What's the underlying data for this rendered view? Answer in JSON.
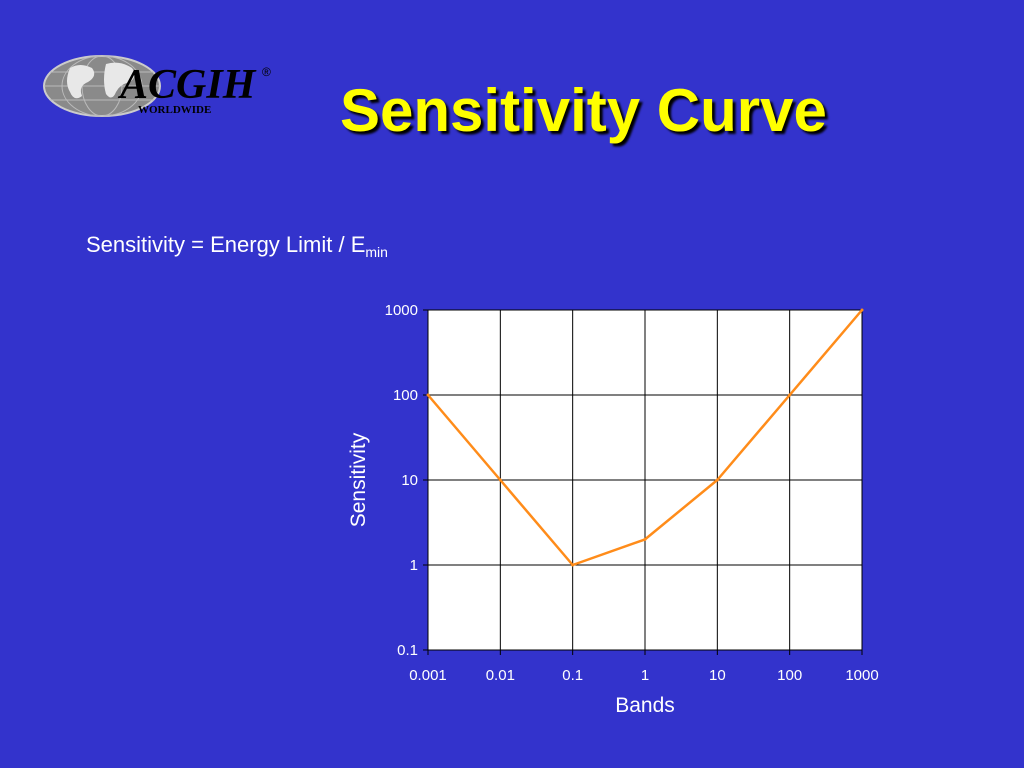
{
  "slide": {
    "title": "Sensitivity Curve",
    "formula_main": "Sensitivity = Energy Limit / E",
    "formula_sub": "min",
    "background": "#3333CC",
    "title_color": "#FFFF00"
  },
  "logo": {
    "text": "ACGIH",
    "registered": "®",
    "subtext": "WORLDWIDE",
    "icon": "globe-icon"
  },
  "chart_data": {
    "type": "line",
    "xlabel": "Bands",
    "ylabel": "Sensitivity",
    "x_scale": "log",
    "y_scale": "log",
    "x_ticks": [
      "0.001",
      "0.01",
      "0.1",
      "1",
      "10",
      "100",
      "1000"
    ],
    "y_ticks": [
      "0.1",
      "1",
      "10",
      "100",
      "1000"
    ],
    "xlim": [
      0.001,
      1000
    ],
    "ylim": [
      0.1,
      1000
    ],
    "grid": true,
    "line_color": "#FF8C1A",
    "series": [
      {
        "x": [
          0.001,
          0.01,
          0.1,
          1,
          10,
          100,
          1000
        ],
        "y": [
          100,
          10,
          1,
          2,
          10,
          100,
          1000
        ]
      }
    ]
  }
}
